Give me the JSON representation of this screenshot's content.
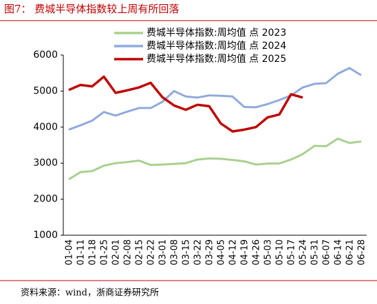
{
  "chart_data": {
    "type": "line",
    "title": "图7：  费城半导体指数较上周有所回落",
    "source": "资料来源：wind，浙商证券研究所",
    "categories": [
      "01-04",
      "01-11",
      "01-18",
      "01-25",
      "02-01",
      "02-08",
      "02-15",
      "02-22",
      "03-01",
      "03-08",
      "03-15",
      "03-22",
      "03-29",
      "04-05",
      "04-12",
      "04-19",
      "04-26",
      "05-03",
      "05-10",
      "05-17",
      "05-24",
      "05-31",
      "06-07",
      "06-14",
      "06-21",
      "06-28"
    ],
    "series": [
      {
        "name": "费城半导体指数:周均值  点 2023",
        "color": "#a9d18e",
        "values": [
          2550,
          2750,
          2780,
          2930,
          3000,
          3030,
          3070,
          2950,
          2960,
          2980,
          3000,
          3100,
          3130,
          3120,
          3090,
          3050,
          2960,
          2990,
          2990,
          3100,
          3250,
          3480,
          3470,
          3680,
          3560,
          3600
        ]
      },
      {
        "name": "费城半导体指数:周均值  点 2024",
        "color": "#8faadc",
        "values": [
          3930,
          4050,
          4180,
          4420,
          4320,
          4430,
          4530,
          4530,
          4700,
          5000,
          4850,
          4820,
          4880,
          4870,
          4850,
          4560,
          4550,
          4640,
          4750,
          4880,
          5100,
          5200,
          5220,
          5480,
          5640,
          5440
        ]
      },
      {
        "name": "费城半导体指数:周均值  点 2025",
        "color": "#c00000",
        "values": [
          5030,
          5170,
          5130,
          5400,
          4950,
          5020,
          5100,
          5230,
          4830,
          4600,
          4480,
          4620,
          4580,
          4100,
          3880,
          3930,
          4000,
          4270,
          4350,
          4910,
          4820,
          null,
          null,
          null,
          null,
          null
        ]
      }
    ],
    "ylim": [
      1000,
      6000
    ],
    "yticks": [
      1000,
      2000,
      3000,
      4000,
      5000,
      6000
    ]
  }
}
